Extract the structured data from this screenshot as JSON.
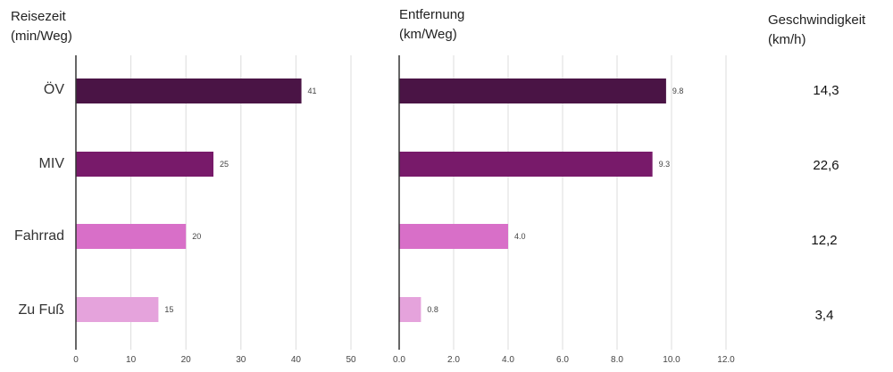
{
  "headers": {
    "travel_time": [
      "Reisezeit",
      "(min/Weg)"
    ],
    "distance": [
      "Entfernung",
      "(km/Weg)"
    ],
    "speed": [
      "Geschwindigkeit",
      "(km/h)"
    ]
  },
  "colors": [
    "#4a1445",
    "#781a6a",
    "#d86fc8",
    "#e5a3dc"
  ],
  "chart_data": [
    {
      "type": "bar",
      "orientation": "horizontal",
      "categories": [
        "ÖV",
        "MIV",
        "Fahrrad",
        "Zu Fuß"
      ],
      "values": [
        41,
        25,
        20,
        15
      ],
      "value_labels": [
        "41",
        "25",
        "20",
        "15"
      ],
      "xlim": [
        0,
        50
      ],
      "xticks": [
        0,
        10,
        20,
        30,
        40,
        50
      ],
      "tick_labels": [
        "0",
        "10",
        "20",
        "30",
        "40",
        "50"
      ],
      "grid": true
    },
    {
      "type": "bar",
      "orientation": "horizontal",
      "categories": [
        "ÖV",
        "MIV",
        "Fahrrad",
        "Zu Fuß"
      ],
      "values": [
        9.8,
        9.3,
        4.0,
        0.8
      ],
      "value_labels": [
        "9.8",
        "9.3",
        "4.0",
        "0.8"
      ],
      "xlim": [
        0,
        12
      ],
      "xticks": [
        0,
        2,
        4,
        6,
        8,
        10,
        12
      ],
      "tick_labels": [
        "0.0",
        "2.0",
        "4.0",
        "6.0",
        "8.0",
        "10.0",
        "12.0"
      ],
      "grid": true
    },
    {
      "type": "table",
      "categories": [
        "ÖV",
        "MIV",
        "Fahrrad",
        "Zu Fuß"
      ],
      "values": [
        "14,3",
        "22,6",
        "12,2",
        "3,4"
      ]
    }
  ]
}
